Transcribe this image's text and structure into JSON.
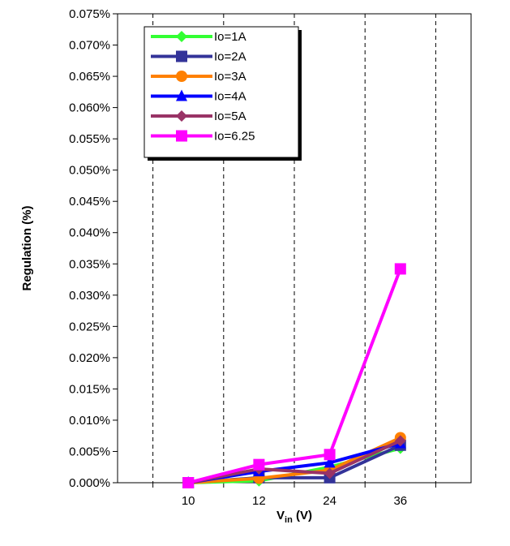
{
  "chart_data": {
    "type": "line",
    "categories": [
      "10",
      "12",
      "24",
      "36"
    ],
    "ylim": [
      0,
      0.075
    ],
    "ytick_step": 0.005,
    "ytick_labels": [
      "0.000%",
      "0.005%",
      "0.010%",
      "0.015%",
      "0.020%",
      "0.025%",
      "0.030%",
      "0.035%",
      "0.040%",
      "0.045%",
      "0.050%",
      "0.055%",
      "0.060%",
      "0.065%",
      "0.070%",
      "0.075%"
    ],
    "ylabel": "Regulation (%)",
    "xlabel_main": "V",
    "xlabel_sub": "in",
    "xlabel_unit": " (V)",
    "grid": "vertical dashed",
    "legend_position": "top-left",
    "series": [
      {
        "name": "Io=1A",
        "values": [
          0,
          0.0003,
          0.0025,
          0.0055
        ],
        "color": "#33ff33",
        "marker": "diamond"
      },
      {
        "name": "Io=2A",
        "values": [
          0,
          0.0008,
          0.0008,
          0.006
        ],
        "color": "#333399",
        "marker": "square"
      },
      {
        "name": "Io=3A",
        "values": [
          0,
          0.0007,
          0.002,
          0.0072
        ],
        "color": "#ff8000",
        "marker": "circle"
      },
      {
        "name": "Io=4A",
        "values": [
          0,
          0.0018,
          0.0032,
          0.0063
        ],
        "color": "#0000ff",
        "marker": "triangle"
      },
      {
        "name": "Io=5A",
        "values": [
          0,
          0.0022,
          0.0015,
          0.0067
        ],
        "color": "#993366",
        "marker": "diamond"
      },
      {
        "name": "Io=6.25",
        "values": [
          0,
          0.0029,
          0.0045,
          0.0342
        ],
        "color": "#ff00ff",
        "marker": "square"
      }
    ]
  }
}
